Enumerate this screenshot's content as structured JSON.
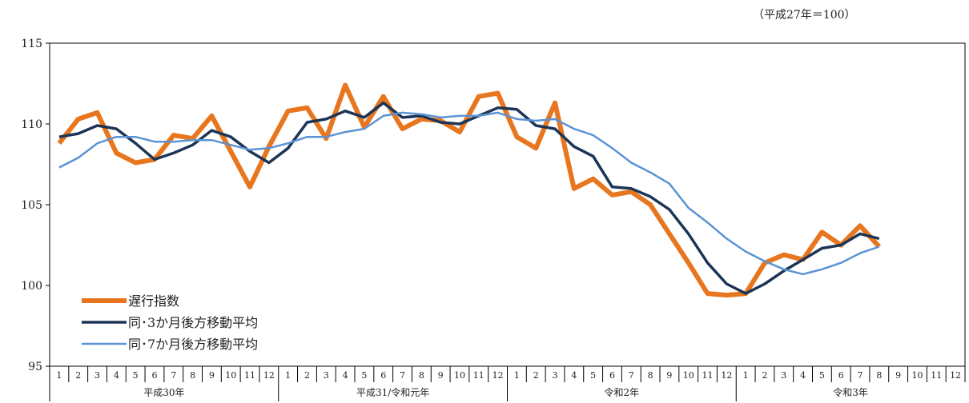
{
  "chart_data": {
    "type": "line",
    "unit_note": "（平成27年＝100）",
    "ylim": [
      95,
      115
    ],
    "y_ticks": [
      95,
      100,
      105,
      110,
      115
    ],
    "x_month_labels": [
      "1",
      "2",
      "3",
      "4",
      "5",
      "6",
      "7",
      "8",
      "9",
      "10",
      "11",
      "12"
    ],
    "year_groups": [
      "平成30年",
      "平成31/令和元年",
      "令和2年",
      "令和3年"
    ],
    "legend_position": "bottom-left",
    "grid": false,
    "series": [
      {
        "name": "遅行指数",
        "color": "#e8761e",
        "values": [
          108.8,
          110.3,
          110.7,
          108.2,
          107.6,
          107.8,
          109.3,
          109.1,
          110.5,
          108.3,
          106.1,
          108.6,
          110.8,
          111.0,
          109.1,
          112.4,
          109.8,
          111.7,
          109.7,
          110.3,
          110.2,
          109.5,
          111.7,
          111.9,
          109.2,
          108.5,
          111.3,
          106.0,
          106.6,
          105.6,
          105.8,
          105.0,
          103.2,
          101.4,
          99.5,
          99.4,
          99.5,
          101.4,
          101.9,
          101.6,
          103.3,
          102.5,
          103.7,
          102.4
        ]
      },
      {
        "name": "同･3か月後方移動平均",
        "color": "#1c3557",
        "values": [
          109.2,
          109.4,
          109.9,
          109.7,
          108.8,
          107.8,
          108.2,
          108.7,
          109.6,
          109.2,
          108.3,
          107.6,
          108.5,
          110.1,
          110.3,
          110.8,
          110.4,
          111.3,
          110.4,
          110.5,
          110.1,
          110.0,
          110.5,
          111.0,
          110.9,
          109.9,
          109.7,
          108.6,
          108.0,
          106.1,
          106.0,
          105.5,
          104.7,
          103.2,
          101.4,
          100.1,
          99.5,
          100.1,
          100.9,
          101.6,
          102.3,
          102.5,
          103.2,
          102.9
        ]
      },
      {
        "name": "同･7か月後方移動平均",
        "color": "#5b93d5",
        "values": [
          107.3,
          107.9,
          108.8,
          109.2,
          109.2,
          108.9,
          108.9,
          109.0,
          109.0,
          108.7,
          108.4,
          108.5,
          108.8,
          109.2,
          109.2,
          109.5,
          109.7,
          110.5,
          110.7,
          110.6,
          110.4,
          110.5,
          110.5,
          110.7,
          110.3,
          110.2,
          110.3,
          109.7,
          109.3,
          108.5,
          107.6,
          107.0,
          106.3,
          104.8,
          103.9,
          102.9,
          102.1,
          101.5,
          101.0,
          100.7,
          101.0,
          101.4,
          102.0,
          102.4
        ]
      }
    ]
  }
}
